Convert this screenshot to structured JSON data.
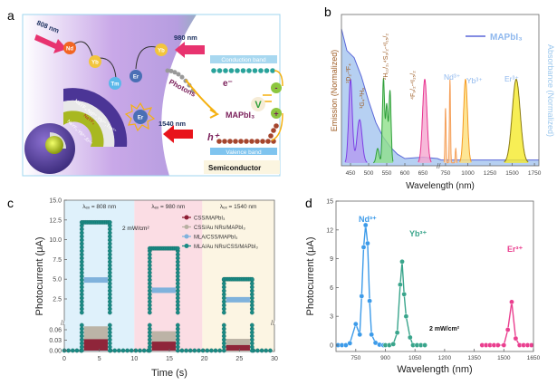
{
  "panel_labels": {
    "a": "a",
    "b": "b",
    "c": "c",
    "d": "d"
  },
  "diagram_a": {
    "excitations": [
      "808 nm",
      "980 nm",
      "1540 nm"
    ],
    "ions": {
      "nd": "Nd",
      "yb1": "Yb",
      "tm": "Tm",
      "er1": "Er",
      "yb2": "Yb",
      "er2": "Er"
    },
    "shell_labels": [
      "NaYF₄:Nd³⁺,Yb³⁺,Tm³⁺",
      "NaYF₄",
      "NaYF₄:Yb³⁺,Er³⁺"
    ],
    "photons": "Photons",
    "material": "MAPbI₃",
    "conduction_band": "Conduction band",
    "valence_band": "Valence band",
    "electron": "e⁻",
    "hole": "h⁺",
    "voltage": "V",
    "minus": "-",
    "plus": "+",
    "semiconductor": "Semiconductor",
    "colors": {
      "nd": "#f26522",
      "yb": "#f2c53d",
      "tm": "#5bb8ea",
      "er": "#4a6fb5",
      "arrow": "#e8336f",
      "arrow_1540": "#e8141b",
      "conduction": "#29a39b",
      "valence": "#a5452d",
      "circuit": "#f5b111",
      "terminal": "#8cc63f"
    }
  },
  "chart_data": [
    {
      "id": "b",
      "type": "line",
      "xlabel": "Wavelength (nm)",
      "ylabel_left": "Emission (Normalized)",
      "ylabel_right": "Absorbance (Normalized)",
      "x_broken": true,
      "xticks_segment1": [
        450,
        500,
        550,
        600,
        650
      ],
      "xticks_segment2": [
        750,
        1000,
        1250,
        1500,
        1750
      ],
      "xlim_segment1": [
        425,
        690
      ],
      "xlim_segment2": [
        700,
        1800
      ],
      "ylim": [
        0,
        1.05
      ],
      "legend": {
        "entry": "MAPbI₃",
        "placement": "top-right"
      },
      "absorbance": {
        "color": "#5a67d8",
        "fill": "#a9c8f0",
        "x": [
          425,
          440,
          460,
          480,
          500,
          520,
          540,
          560,
          580,
          600,
          650,
          690,
          700,
          1800
        ],
        "y": [
          0.95,
          0.8,
          0.75,
          0.62,
          0.45,
          0.3,
          0.2,
          0.13,
          0.08,
          0.05,
          0.06,
          0.05,
          0.04,
          0.04
        ]
      },
      "emission_bands": [
        {
          "label": "¹D₂-³F₄",
          "color": "#7b3fe4",
          "fill": "#b49af0",
          "peaks": [
            [
              450,
              0.58,
              5
            ],
            [
              475,
              0.3,
              7
            ]
          ]
        },
        {
          "label": "¹G₄-³H₆",
          "color": "#7b3fe4",
          "fill": "#b49af0",
          "peaks": []
        },
        {
          "label": "²H₁₁/₂,⁴S₃/₂-⁴I₁₅/₂",
          "color": "#2e9e3a",
          "fill": "#8ee08a",
          "peaks": [
            [
              525,
              0.1,
              4
            ],
            [
              541,
              0.58,
              3
            ],
            [
              550,
              0.4,
              3
            ],
            [
              559,
              0.5,
              3
            ]
          ]
        },
        {
          "label": "⁴F₉/₂-⁴I₁₅/₂",
          "color": "#e8338f",
          "fill": "#f5a8cf",
          "peaks": [
            [
              655,
              0.58,
              6
            ]
          ]
        },
        {
          "label": "Nd³⁺",
          "color": "#f5a05a",
          "fill": "#fbd0a8",
          "peaks": [
            [
              750,
              0.38,
              6
            ],
            [
              800,
              0.58,
              6
            ],
            [
              865,
              0.1,
              6
            ]
          ]
        },
        {
          "label": "Yb³⁺",
          "color": "#f59a23",
          "fill": "#fce07a",
          "peaks": [
            [
              975,
              0.58,
              22
            ]
          ]
        },
        {
          "label": "Er³⁺",
          "color": "#8a7a10",
          "fill": "#f5ea2a",
          "peaks": [
            [
              1545,
              0.58,
              45
            ]
          ]
        }
      ]
    },
    {
      "id": "c",
      "type": "line",
      "xlabel": "Time (s)",
      "ylabel": "Photocurrent (μA)",
      "xlim": [
        0,
        30
      ],
      "xticks": [
        0,
        5,
        10,
        15,
        20,
        25,
        30
      ],
      "y_broken": true,
      "yticks_upper": [
        "2.5",
        "5.0",
        "7.5",
        "10.0",
        "12.5",
        "15.0"
      ],
      "yticks_lower": [
        "0.00",
        "0.03",
        "0.06"
      ],
      "regions": [
        {
          "label": "λₑₓ = 808 nm",
          "from": 0,
          "to": 10,
          "color": "#dff1fb"
        },
        {
          "label": "λₑₓ = 980 nm",
          "from": 10,
          "to": 19.7,
          "color": "#fbdde4"
        },
        {
          "label": "λₑₓ = 1540 nm",
          "from": 19.7,
          "to": 30,
          "color": "#fcf5e3"
        }
      ],
      "annotation": "2 mW/cm²",
      "pulses": [
        [
          2.5,
          6.5
        ],
        [
          12.2,
          16.2
        ],
        [
          22.8,
          26.8
        ]
      ],
      "series": [
        {
          "name": "CSS/MAPbI₃",
          "color": "#8c1e34",
          "on_values": [
            0.025,
            0.018,
            0.008
          ]
        },
        {
          "name": "CSS/Au NRs/MAPbI₃",
          "color": "#b8b0a2",
          "on_values": [
            0.062,
            0.048,
            0.026
          ]
        },
        {
          "name": "MLA/CSS/MAPbI₃",
          "color": "#7fb2dc",
          "on_values": [
            4.9,
            3.6,
            2.4
          ]
        },
        {
          "name": "MLA/Au NRs/CSS/MAPbI₃",
          "color": "#1a8a84",
          "on_values": [
            12.2,
            8.9,
            5.0
          ]
        }
      ]
    },
    {
      "id": "d",
      "type": "line",
      "xlabel": "Wavelength (nm)",
      "ylabel": "Photocurrent (μA)",
      "xlim": [
        650,
        1650
      ],
      "ylim": [
        0,
        15
      ],
      "xticks": [
        750,
        900,
        1050,
        1200,
        1350,
        1500,
        1650
      ],
      "yticks": [
        0,
        3,
        6,
        9,
        12,
        15
      ],
      "annotation": "2 mW/cm²",
      "series": [
        {
          "label": "Nd³⁺",
          "color": "#3d9be9",
          "x": [
            660,
            680,
            700,
            720,
            750,
            770,
            780,
            790,
            800,
            810,
            820,
            830,
            850,
            870,
            890,
            900
          ],
          "y": [
            0,
            0,
            0,
            0.2,
            2.2,
            1.1,
            5.1,
            10.2,
            12.5,
            10.6,
            4.6,
            1.1,
            0.25,
            0.05,
            0,
            0
          ]
        },
        {
          "label": "Yb³⁺",
          "color": "#3aa58c",
          "x": [
            900,
            920,
            940,
            960,
            975,
            985,
            995,
            1005,
            1025,
            1040,
            1060,
            1080,
            1100
          ],
          "y": [
            0,
            0,
            0.1,
            1.3,
            6.3,
            8.7,
            5.3,
            3.0,
            0.8,
            0,
            0,
            0,
            0
          ]
        },
        {
          "label": "Er³⁺",
          "color": "#ea3f8f",
          "x": [
            1390,
            1410,
            1430,
            1450,
            1470,
            1500,
            1520,
            1540,
            1560,
            1580,
            1600,
            1620,
            1640
          ],
          "y": [
            0,
            0,
            0,
            0,
            0,
            0,
            1.6,
            4.5,
            0.7,
            0,
            0,
            0,
            0
          ]
        }
      ]
    }
  ]
}
